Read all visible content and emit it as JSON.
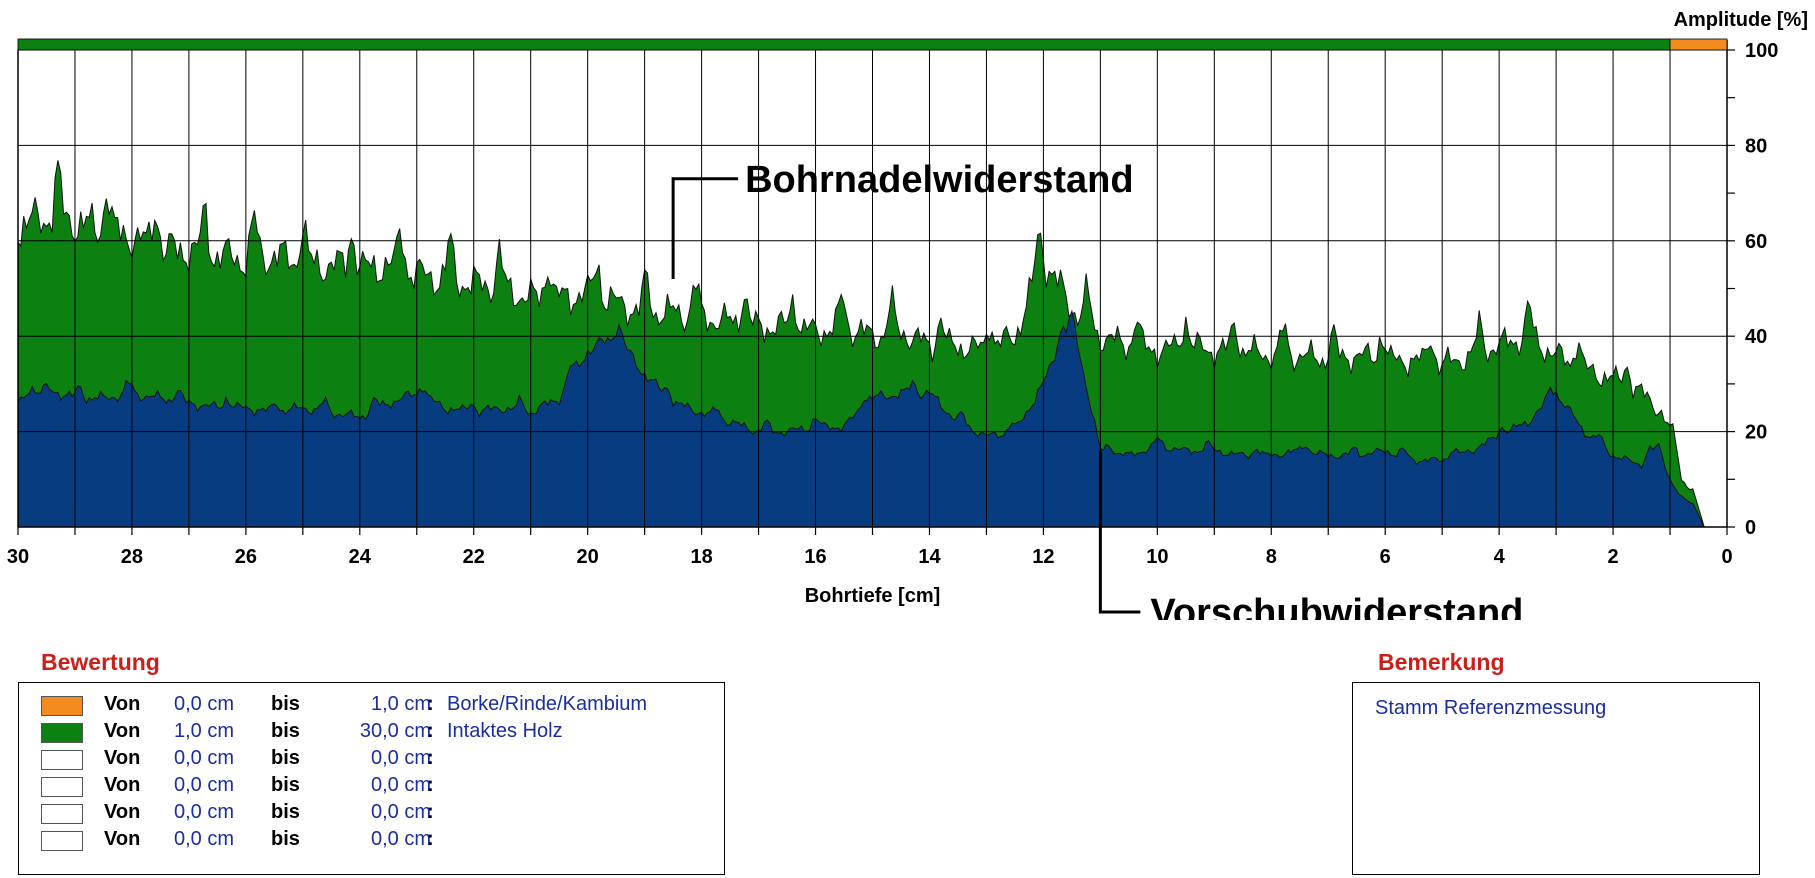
{
  "chart_data": {
    "type": "area",
    "xlabel": "Bohrtiefe [cm]",
    "ylabel": "Amplitude [%]",
    "xlim": [
      30,
      0
    ],
    "ylim": [
      0,
      100
    ],
    "x_ticks": [
      "30",
      "28",
      "26",
      "24",
      "22",
      "20",
      "18",
      "16",
      "14",
      "12",
      "10",
      "8",
      "6",
      "4",
      "2",
      "0"
    ],
    "y_ticks": [
      "100",
      "80",
      "60",
      "40",
      "20",
      "0"
    ],
    "annotations": {
      "drill": "Bohrnadelwiderstand",
      "feed": "Vorschubwiderstand"
    },
    "top_bar": [
      {
        "from": 1.0,
        "to": 30.0,
        "color": "#0c8010"
      },
      {
        "from": 0.0,
        "to": 1.0,
        "color": "#f28c1e"
      }
    ],
    "series": [
      {
        "name": "Bohrnadelwiderstand",
        "color": "#0c8010",
        "x": [
          30,
          29.5,
          29,
          28.5,
          28,
          27.5,
          27,
          26.5,
          26,
          25.5,
          25,
          24.5,
          24,
          23.5,
          23,
          22.5,
          22,
          21.5,
          21,
          20.5,
          20,
          19.5,
          19,
          18.5,
          18,
          17.5,
          17,
          16.5,
          16,
          15.5,
          15,
          14.5,
          14,
          13.5,
          13,
          12.5,
          12,
          11.5,
          11,
          10.5,
          10,
          9.5,
          9,
          8.5,
          8,
          7.5,
          7,
          6.5,
          6,
          5.5,
          5,
          4.5,
          4,
          3.5,
          3,
          2.5,
          2,
          1.5,
          1.2,
          1.0,
          0.8,
          0.6,
          0.4
        ],
        "values": [
          63,
          65,
          64,
          62,
          61,
          58,
          58,
          57,
          56,
          57,
          55,
          55,
          54,
          55,
          53,
          52,
          51,
          50,
          48,
          48,
          49,
          47,
          45,
          45,
          44,
          43,
          42,
          42,
          41,
          42,
          40,
          41,
          38,
          38,
          37,
          40,
          56,
          46,
          40,
          38,
          37,
          38,
          37,
          37,
          36,
          36,
          35,
          36,
          35,
          35,
          34,
          36,
          38,
          40,
          36,
          33,
          31,
          28,
          25,
          20,
          10,
          8,
          0
        ]
      },
      {
        "name": "Vorschubwiderstand",
        "color": "#073d80",
        "x": [
          30,
          29.5,
          29,
          28.5,
          28,
          27.5,
          27,
          26.5,
          26,
          25.5,
          25,
          24.5,
          24,
          23.5,
          23,
          22.5,
          22,
          21.5,
          21,
          20.5,
          20,
          19.5,
          19,
          18.5,
          18,
          17.5,
          17,
          16.5,
          16,
          15.5,
          15,
          14.5,
          14,
          13.5,
          13,
          12.5,
          12,
          11.5,
          11,
          10.5,
          10,
          9.5,
          9,
          8.5,
          8,
          7.5,
          7,
          6.5,
          6,
          5.5,
          5,
          4.5,
          4,
          3.5,
          3,
          2.5,
          2,
          1.5,
          1.2,
          1.0,
          0.8,
          0.6,
          0.4
        ],
        "values": [
          26,
          29,
          27,
          27,
          28,
          27,
          26,
          25,
          25,
          24,
          25,
          24,
          23,
          26,
          28,
          25,
          24,
          25,
          24,
          27,
          37,
          40,
          32,
          26,
          24,
          22,
          20,
          20,
          21,
          21,
          27,
          28,
          28,
          22,
          19,
          20,
          30,
          44,
          16,
          15,
          17,
          16,
          16,
          15,
          15,
          16,
          15,
          15,
          16,
          14,
          14,
          16,
          19,
          22,
          28,
          20,
          15,
          13,
          17,
          10,
          6,
          5,
          0
        ]
      }
    ]
  },
  "legend": {
    "title": "Bewertung",
    "rows": [
      {
        "label": "Von",
        "from": "0,0 cm",
        "bis": "bis",
        "to": "1,0 cm",
        "colon": ":",
        "desc": "Borke/Rinde/Kambium",
        "color": "#f28c1e"
      },
      {
        "label": "Von",
        "from": "1,0 cm",
        "bis": "bis",
        "to": "30,0 cm",
        "colon": ":",
        "desc": "Intaktes Holz",
        "color": "#0c8010"
      },
      {
        "label": "Von",
        "from": "0,0 cm",
        "bis": "bis",
        "to": "0,0 cm",
        "colon": ":",
        "desc": "",
        "color": "#ffffff"
      },
      {
        "label": "Von",
        "from": "0,0 cm",
        "bis": "bis",
        "to": "0,0 cm",
        "colon": ":",
        "desc": "",
        "color": "#ffffff"
      },
      {
        "label": "Von",
        "from": "0,0 cm",
        "bis": "bis",
        "to": "0,0 cm",
        "colon": ":",
        "desc": "",
        "color": "#ffffff"
      },
      {
        "label": "Von",
        "from": "0,0 cm",
        "bis": "bis",
        "to": "0,0 cm",
        "colon": ":",
        "desc": "",
        "color": "#ffffff"
      }
    ]
  },
  "remark": {
    "title": "Bemerkung",
    "text": "Stamm Referenzmessung"
  }
}
